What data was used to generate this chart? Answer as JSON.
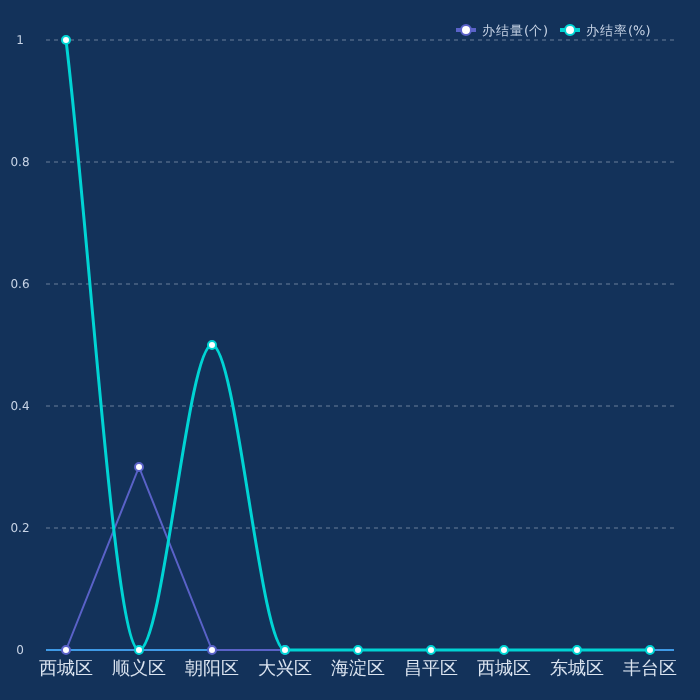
{
  "chart_data": {
    "type": "line",
    "categories": [
      "西城区",
      "顺义区",
      "朝阳区",
      "大兴区",
      "海淀区",
      "昌平区",
      "西城区",
      "东城区",
      "丰台区"
    ],
    "series": [
      {
        "name": "办结量(个)",
        "color": "#5a62c8",
        "values": [
          0,
          0.3,
          0,
          0,
          null,
          null,
          null,
          null,
          null
        ]
      },
      {
        "name": "办结率(%)",
        "color": "#00d4d4",
        "values": [
          1,
          0,
          0.5,
          0,
          0,
          0,
          0,
          0,
          0
        ]
      }
    ],
    "ylim": [
      0,
      1
    ],
    "yticks": [
      0,
      0.2,
      0.4,
      0.6,
      0.8,
      1
    ],
    "grid": "y",
    "legend": "top right",
    "marker": "circle"
  }
}
